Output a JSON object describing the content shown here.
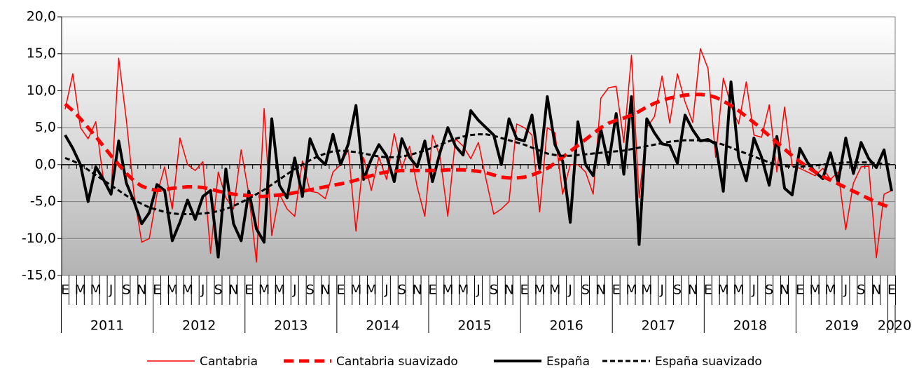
{
  "chart_data": {
    "type": "line",
    "categories": [
      "E",
      null,
      "M",
      null,
      "M",
      null,
      "J",
      null,
      "S",
      null,
      "N",
      null,
      "E",
      null,
      "M",
      null,
      "M",
      null,
      "J",
      null,
      "S",
      null,
      "N",
      null,
      "E",
      null,
      "M",
      null,
      "M",
      null,
      "J",
      null,
      "S",
      null,
      "N",
      null,
      "E",
      null,
      "M",
      null,
      "M",
      null,
      "J",
      null,
      "S",
      null,
      "N",
      null,
      "E",
      null,
      "M",
      null,
      "M",
      null,
      "J",
      null,
      "S",
      null,
      "N",
      null,
      "E",
      null,
      "M",
      null,
      "M",
      null,
      "J",
      null,
      "S",
      null,
      "N",
      null,
      "E",
      null,
      "M",
      null,
      "M",
      null,
      "J",
      null,
      "S",
      null,
      "N",
      null,
      "E",
      null,
      "M",
      null,
      "M",
      null,
      "J",
      null,
      "S",
      null,
      "N",
      null,
      "E",
      null,
      "M",
      null,
      "M",
      null,
      "J",
      null,
      "S",
      null,
      "N",
      null,
      "E"
    ],
    "years": [
      "2011",
      "2012",
      "2013",
      "2014",
      "2015",
      "2016",
      "2017",
      "2018",
      "2019",
      "2020"
    ],
    "ylim": [
      -15,
      20
    ],
    "yticks": [
      {
        "value": -15,
        "label": "-15,0"
      },
      {
        "value": -10,
        "label": "-10,0"
      },
      {
        "value": -5,
        "label": "-5,0"
      },
      {
        "value": 0,
        "label": "0,0"
      },
      {
        "value": 5,
        "label": "5,0"
      },
      {
        "value": 10,
        "label": "10,0"
      },
      {
        "value": 15,
        "label": "15,0"
      },
      {
        "value": 20,
        "label": "20,0"
      }
    ],
    "grid": true,
    "legend": "bottom",
    "series": [
      {
        "name": "Cantabria",
        "color": "#ff0000",
        "dash": false,
        "weight": "thin",
        "values": [
          7.5,
          12.3,
          5,
          3.5,
          5.8,
          -2,
          -3.8,
          14.4,
          6,
          -4,
          -10.5,
          -10,
          -4,
          -0.3,
          -6,
          3.6,
          0,
          -0.8,
          0.4,
          -12,
          -1,
          -4.5,
          -6,
          2,
          -4,
          -13.2,
          7.6,
          -9.6,
          -4,
          -6,
          -7,
          0.5,
          -3.6,
          -3.8,
          -4.6,
          -1,
          0,
          2,
          -9,
          1,
          -3.5,
          1,
          -2,
          4.2,
          -0.5,
          2.5,
          -3,
          -7,
          4,
          1,
          -7,
          3.5,
          2.5,
          0.8,
          3,
          -2,
          -6.7,
          -6,
          -5,
          5.5,
          5,
          4,
          -6.4,
          5,
          4.3,
          -4,
          0,
          0,
          -1,
          -4,
          9,
          10.4,
          10.6,
          3,
          14.8,
          -4.5,
          5,
          6.5,
          12,
          5.6,
          12.3,
          8.5,
          5.7,
          15.7,
          13,
          1,
          11.7,
          8,
          5.5,
          11.2,
          4,
          3.7,
          8.1,
          -1,
          7.8,
          -0.2,
          -0.5,
          -1,
          -1.5,
          -0.5,
          -2,
          -1,
          -8.8,
          -2.5,
          -0.3,
          -0.2,
          -12.6,
          -4,
          -3.5
        ]
      },
      {
        "name": "Cantabria suavizado",
        "color": "#ff0000",
        "dash": true,
        "weight": "thick",
        "values": [
          8.2,
          7.3,
          6.2,
          5.0,
          3.8,
          2.5,
          1.2,
          0,
          -1.2,
          -2.2,
          -2.9,
          -3.3,
          -3.5,
          -3.4,
          -3.2,
          -3.1,
          -3.0,
          -3.0,
          -3.1,
          -3.3,
          -3.6,
          -3.8,
          -4.0,
          -4.1,
          -4.2,
          -4.3,
          -4.3,
          -4.2,
          -4.1,
          -4.0,
          -3.8,
          -3.6,
          -3.4,
          -3.2,
          -3.0,
          -2.8,
          -2.6,
          -2.4,
          -2.1,
          -1.8,
          -1.5,
          -1.2,
          -1.0,
          -0.9,
          -0.8,
          -0.8,
          -0.8,
          -0.8,
          -0.8,
          -0.8,
          -0.7,
          -0.7,
          -0.7,
          -0.8,
          -0.9,
          -1.1,
          -1.4,
          -1.7,
          -1.8,
          -1.8,
          -1.7,
          -1.4,
          -1.0,
          -0.5,
          0.2,
          1.0,
          1.8,
          2.6,
          3.4,
          4.2,
          5.0,
          5.6,
          6.0,
          6.3,
          6.7,
          7.2,
          7.8,
          8.3,
          8.7,
          9.0,
          9.2,
          9.4,
          9.5,
          9.5,
          9.4,
          9.1,
          8.6,
          8.0,
          7.3,
          6.5,
          5.7,
          4.8,
          3.9,
          3.0,
          2.1,
          1.2,
          0.4,
          -0.3,
          -1.0,
          -1.6,
          -2.1,
          -2.6,
          -3.1,
          -3.6,
          -4.1,
          -4.6,
          -5.1,
          -5.5,
          -5.8
        ]
      },
      {
        "name": "España",
        "color": "#000000",
        "dash": false,
        "weight": "thick",
        "values": [
          4,
          2.2,
          0,
          -5,
          -0.3,
          -2,
          -4,
          3.2,
          -2.5,
          -5,
          -8,
          -6.5,
          -2.7,
          -3.5,
          -10.3,
          -7.8,
          -4.8,
          -7.4,
          -4.3,
          -3.5,
          -12.5,
          -0.6,
          -8,
          -10.3,
          -3.6,
          -8.7,
          -10.5,
          6.2,
          -2.8,
          -4.5,
          0.9,
          -4.3,
          3.5,
          1,
          0,
          4.1,
          0,
          2.8,
          8,
          -2,
          0.7,
          2.7,
          1.2,
          -2.3,
          3.5,
          1,
          -0.3,
          3.2,
          -2.3,
          1.7,
          5,
          2.5,
          1.3,
          7.3,
          6,
          5,
          4,
          0,
          6.2,
          3.5,
          3.2,
          6.7,
          -0.5,
          9.2,
          2.7,
          0.5,
          -7.8,
          5.8,
          0,
          -1.5,
          4.8,
          0,
          6.9,
          -1.3,
          9.2,
          -10.8,
          6.2,
          4.3,
          2.8,
          2.6,
          0.2,
          6.7,
          4.7,
          3.2,
          3.4,
          2.8,
          -3.6,
          11.2,
          1,
          -2.2,
          3.6,
          1,
          -2.8,
          3.8,
          -3.2,
          -4.1,
          2.2,
          0.3,
          -1,
          -1.9,
          1.6,
          -2.4,
          3.6,
          -1.2,
          3,
          0.8,
          -0.4,
          2,
          -3.6
        ]
      },
      {
        "name": "España suavizado",
        "color": "#000000",
        "dash": true,
        "weight": "medium",
        "values": [
          0.9,
          0.5,
          0,
          -0.7,
          -1.4,
          -2.1,
          -2.8,
          -3.5,
          -4.2,
          -4.8,
          -5.3,
          -5.8,
          -6.1,
          -6.4,
          -6.6,
          -6.7,
          -6.7,
          -6.7,
          -6.6,
          -6.5,
          -6.3,
          -6.0,
          -5.6,
          -5.1,
          -4.6,
          -4.0,
          -3.4,
          -2.7,
          -2.0,
          -1.3,
          -0.6,
          0,
          0.6,
          1.1,
          1.5,
          1.8,
          1.9,
          1.8,
          1.7,
          1.5,
          1.3,
          1.1,
          1.0,
          1.0,
          1.1,
          1.3,
          1.6,
          1.9,
          2.3,
          2.7,
          3.1,
          3.5,
          3.8,
          4.0,
          4.1,
          4.1,
          3.9,
          3.6,
          3.3,
          3.0,
          2.7,
          2.3,
          1.9,
          1.5,
          1.3,
          1.2,
          1.2,
          1.3,
          1.4,
          1.5,
          1.6,
          1.7,
          1.8,
          1.9,
          2.1,
          2.3,
          2.5,
          2.7,
          2.9,
          3.1,
          3.2,
          3.3,
          3.3,
          3.3,
          3.2,
          3.0,
          2.7,
          2.3,
          1.9,
          1.5,
          1.1,
          0.7,
          0.3,
          0,
          -0.2,
          -0.3,
          -0.3,
          -0.2,
          -0.1,
          0,
          0.1,
          0.2,
          0.3,
          0.3,
          0.3,
          0.3,
          0.2,
          0.1,
          0.0
        ]
      }
    ]
  }
}
